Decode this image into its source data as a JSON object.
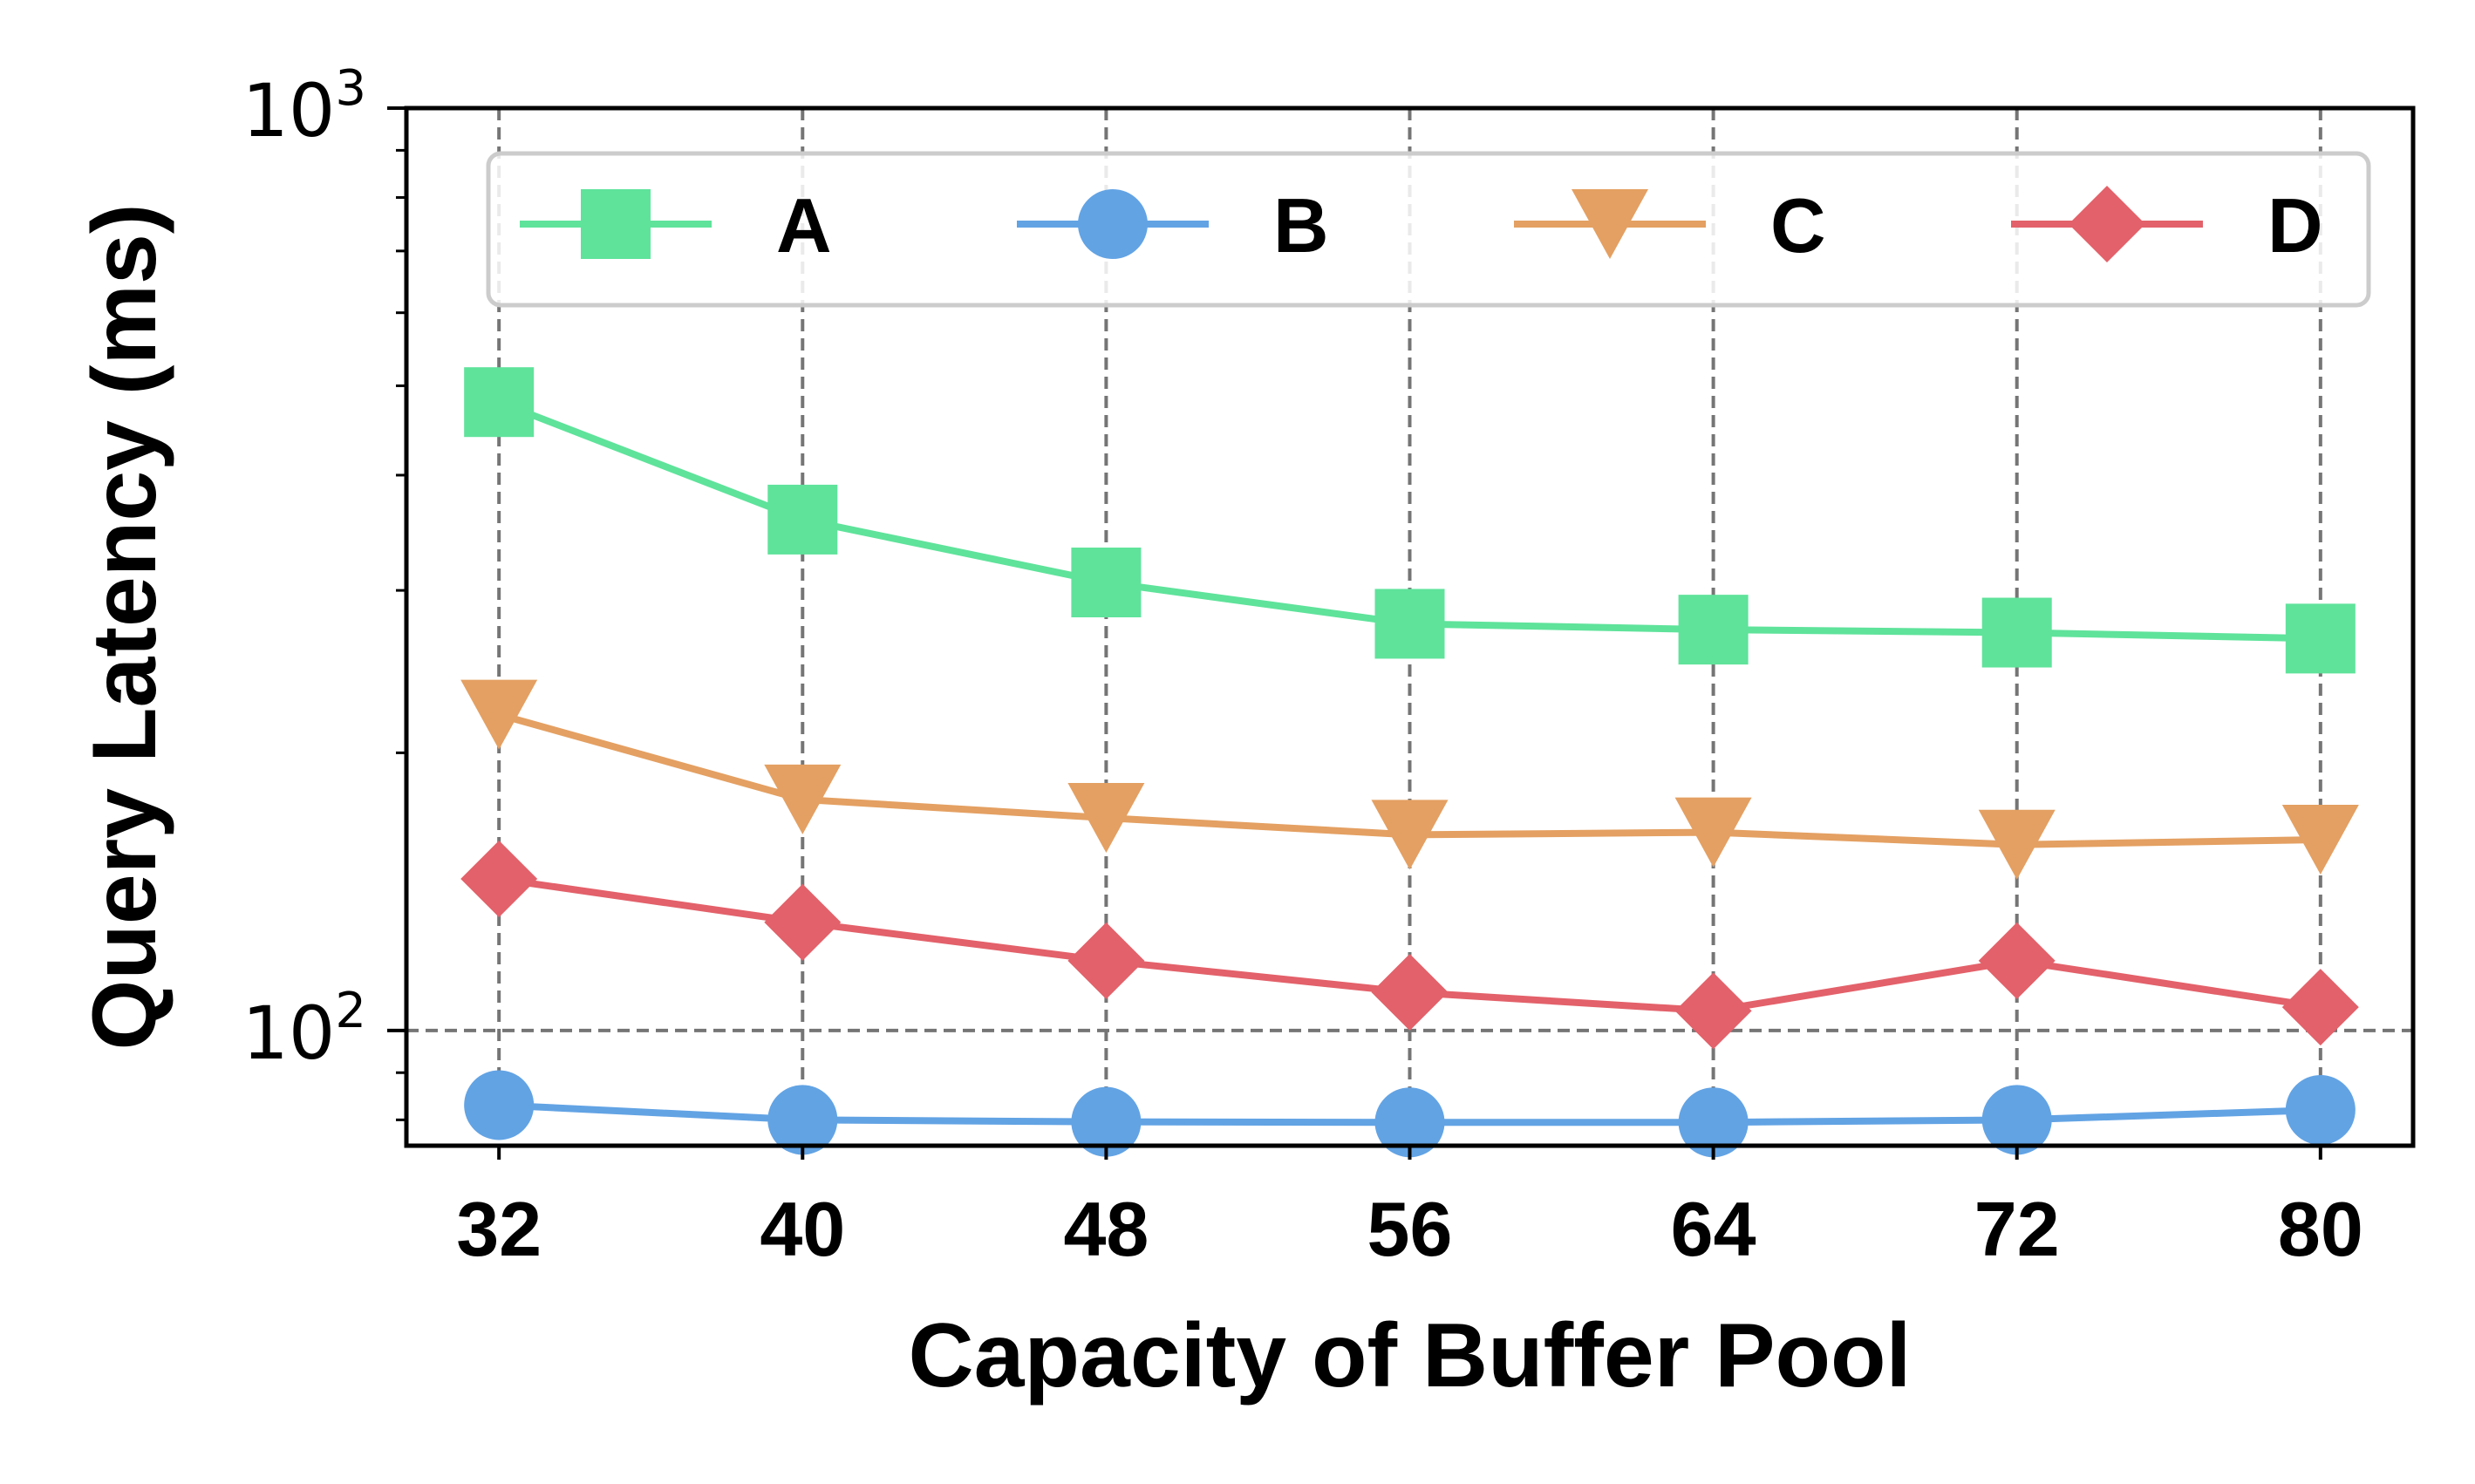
{
  "chart_data": {
    "type": "line",
    "xlabel": "Capacity of Buffer Pool",
    "ylabel": "Query Latency (ms)",
    "yscale": "log",
    "ylim": [
      75,
      1000
    ],
    "x": [
      32,
      40,
      48,
      56,
      64,
      72,
      80
    ],
    "xtick_labels": [
      "32",
      "40",
      "48",
      "56",
      "64",
      "72",
      "80"
    ],
    "ytick_labels": [
      {
        "base": "10",
        "exp": "2",
        "value": 100
      },
      {
        "base": "10",
        "exp": "3",
        "value": 1000
      }
    ],
    "grid": "dashed",
    "legend_position": "top",
    "series": [
      {
        "name": "A",
        "color": "#5fe39b",
        "marker": "square",
        "values": [
          480,
          358,
          306,
          276,
          272,
          270,
          266
        ]
      },
      {
        "name": "B",
        "color": "#62a3e4",
        "marker": "circle",
        "values": [
          83,
          80,
          79.6,
          79.5,
          79.5,
          80,
          82
        ]
      },
      {
        "name": "C",
        "color": "#e4a062",
        "marker": "triangle-down",
        "values": [
          220,
          178,
          170,
          163,
          164,
          159,
          161
        ]
      },
      {
        "name": "D",
        "color": "#e3616a",
        "marker": "diamond",
        "values": [
          146,
          131,
          119,
          110,
          105,
          119,
          106
        ]
      }
    ]
  }
}
